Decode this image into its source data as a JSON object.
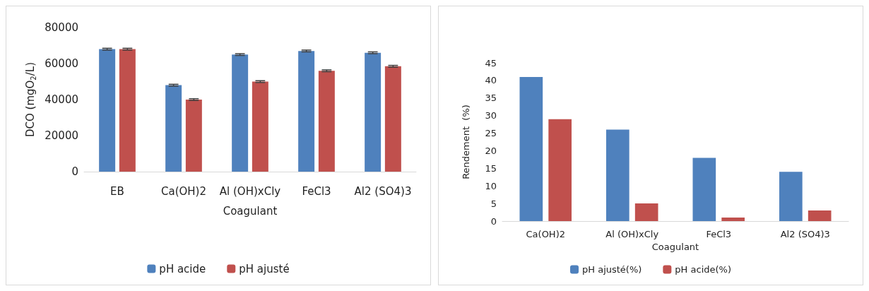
{
  "chart_data": [
    {
      "type": "bar",
      "categories": [
        "EB",
        "Ca(OH)2",
        "Al (OH)xCly",
        "FeCl3",
        "Al2 (SO4)3"
      ],
      "xlabel": "Coagulant",
      "ylabel": "DCO (mgO$_{2}$/L)",
      "ylim": [
        0,
        80000
      ],
      "yticks": [
        0,
        20000,
        40000,
        60000,
        80000
      ],
      "grid": false,
      "legend": "bottom",
      "series": [
        {
          "name": "pH acide",
          "color": "#4f81bd",
          "values": [
            68000,
            48000,
            65000,
            67000,
            66000
          ],
          "errors": [
            500,
            500,
            500,
            500,
            500
          ]
        },
        {
          "name": "pH ajusté",
          "color": "#c0504d",
          "values": [
            68000,
            40000,
            50000,
            56000,
            58500
          ],
          "errors": [
            500,
            500,
            500,
            500,
            500
          ]
        }
      ]
    },
    {
      "type": "bar",
      "categories": [
        "Ca(OH)2",
        "Al (OH)xCly",
        "FeCl3",
        "Al2 (SO4)3"
      ],
      "xlabel": "Coagulant",
      "ylabel": "Rendement  (%)",
      "ylim": [
        0,
        45
      ],
      "yticks": [
        0,
        5,
        10,
        15,
        20,
        25,
        30,
        35,
        40,
        45
      ],
      "grid": false,
      "legend": "bottom",
      "series": [
        {
          "name": "pH ajusté(%)",
          "color": "#4f81bd",
          "values": [
            41,
            26,
            18,
            14
          ]
        },
        {
          "name": "pH acide(%)",
          "color": "#c0504d",
          "values": [
            29,
            5,
            1,
            3
          ]
        }
      ]
    }
  ]
}
